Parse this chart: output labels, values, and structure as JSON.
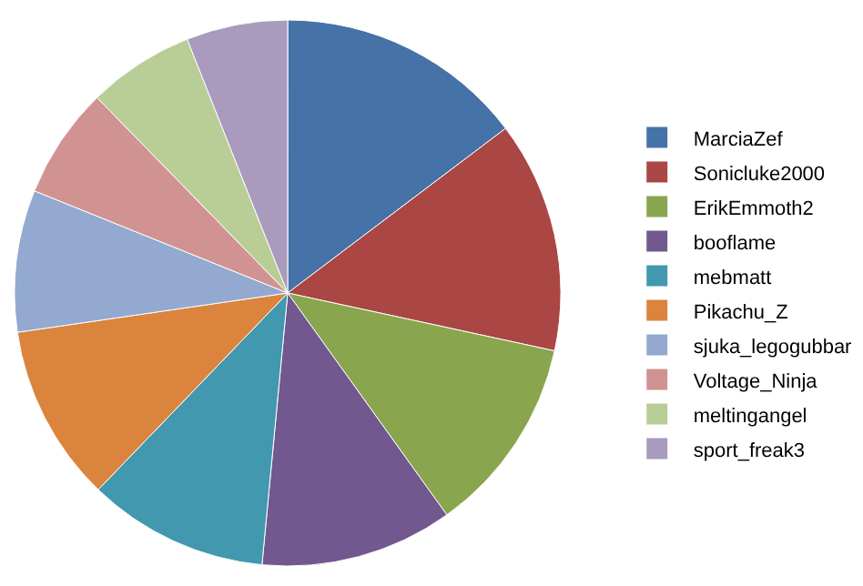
{
  "chart_data": {
    "type": "pie",
    "categories": [
      "MarciaZef",
      "Sonicluke2000",
      "ErikEmmoth2",
      "booflame",
      "mebmatt",
      "Pikachu_Z",
      "sjuka_legogubbar",
      "Voltage_Ninja",
      "meltingangel",
      "sport_freak3"
    ],
    "values": [
      14.7,
      13.7,
      11.7,
      11.4,
      10.7,
      10.5,
      8.4,
      6.6,
      6.3,
      6.0
    ],
    "colors": [
      "#4572a7",
      "#aa4643",
      "#89a54e",
      "#71588f",
      "#4198af",
      "#db843d",
      "#93a9cf",
      "#d19392",
      "#b9cd96",
      "#a99bbd"
    ],
    "legend": "right"
  }
}
